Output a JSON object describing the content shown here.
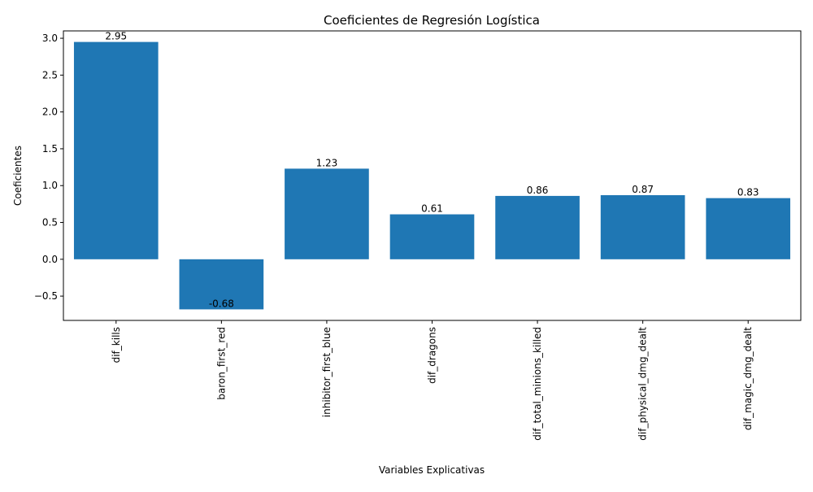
{
  "chart_data": {
    "type": "bar",
    "title": "Coeficientes de Regresión Logística",
    "xlabel": "Variables Explicativas",
    "ylabel": "Coeficientes",
    "categories": [
      "dif_kills",
      "baron_first_red",
      "inhibitor_first_blue",
      "dif_dragons",
      "dif_total_minions_killed",
      "dif_physical_dmg_dealt",
      "dif_magic_dmg_dealt"
    ],
    "values": [
      2.95,
      -0.68,
      1.23,
      0.61,
      0.86,
      0.87,
      0.83
    ],
    "value_labels": [
      "2.95",
      "-0.68",
      "1.23",
      "0.61",
      "0.86",
      "0.87",
      "0.83"
    ],
    "ylim": [
      -0.83,
      3.1
    ],
    "yticks": [
      -0.5,
      0.0,
      0.5,
      1.0,
      1.5,
      2.0,
      2.5,
      3.0
    ],
    "ytick_labels": [
      "−0.5",
      "0.0",
      "0.5",
      "1.0",
      "1.5",
      "2.0",
      "2.5",
      "3.0"
    ],
    "bar_color": "#1f77b4",
    "grid": false,
    "legend": false
  }
}
